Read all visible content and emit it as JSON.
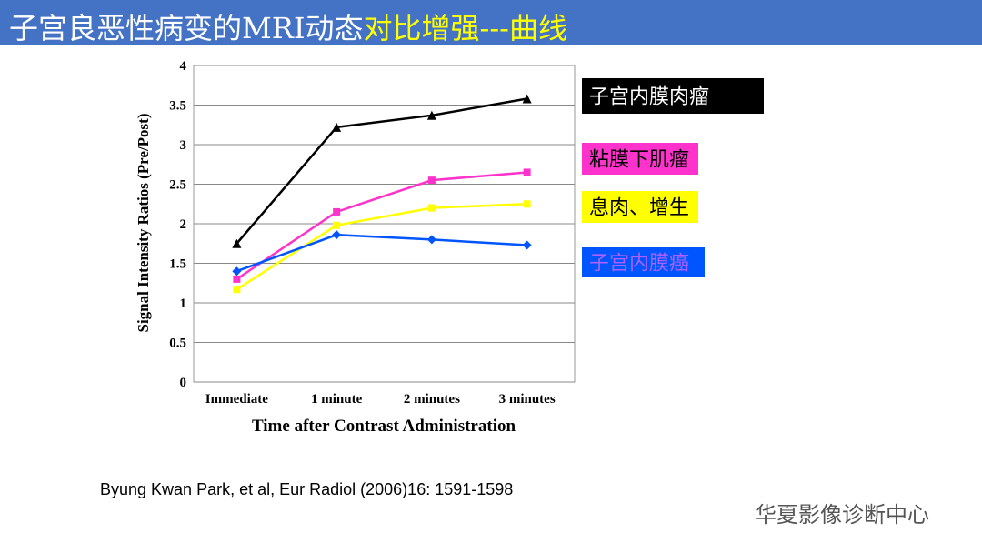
{
  "title_main": "子宫良恶性病变的MRI动态",
  "title_highlight": "对比增强---曲线",
  "citation": "Byung Kwan Park, et al, Eur Radiol (2006)16: 1591-1598",
  "watermark": "华夏影像诊断中心",
  "chart_data": {
    "type": "line",
    "x_label": "Time after Contrast Administration",
    "y_label": "Signal Intensity Ratios (Pre/Post)",
    "categories": [
      "Immediate",
      "1 minute",
      "2 minutes",
      "3 minutes"
    ],
    "ylim": [
      0,
      4
    ],
    "yticks": [
      0,
      0.5,
      1,
      1.5,
      2,
      2.5,
      3,
      3.5,
      4
    ],
    "grid": true,
    "series": [
      {
        "name": "子宫内膜肉瘤",
        "color": "#000000",
        "marker": "triangle",
        "values": [
          1.75,
          3.22,
          3.37,
          3.58
        ]
      },
      {
        "name": "粘膜下肌瘤",
        "color": "#ff33cc",
        "marker": "square",
        "values": [
          1.3,
          2.15,
          2.55,
          2.65
        ]
      },
      {
        "name": "息肉、增生",
        "color": "#ffff00",
        "marker": "square",
        "values": [
          1.17,
          1.98,
          2.2,
          2.25
        ]
      },
      {
        "name": "子宫内膜癌",
        "color": "#0055ff",
        "marker": "diamond",
        "values": [
          1.4,
          1.86,
          1.8,
          1.73
        ]
      }
    ]
  }
}
